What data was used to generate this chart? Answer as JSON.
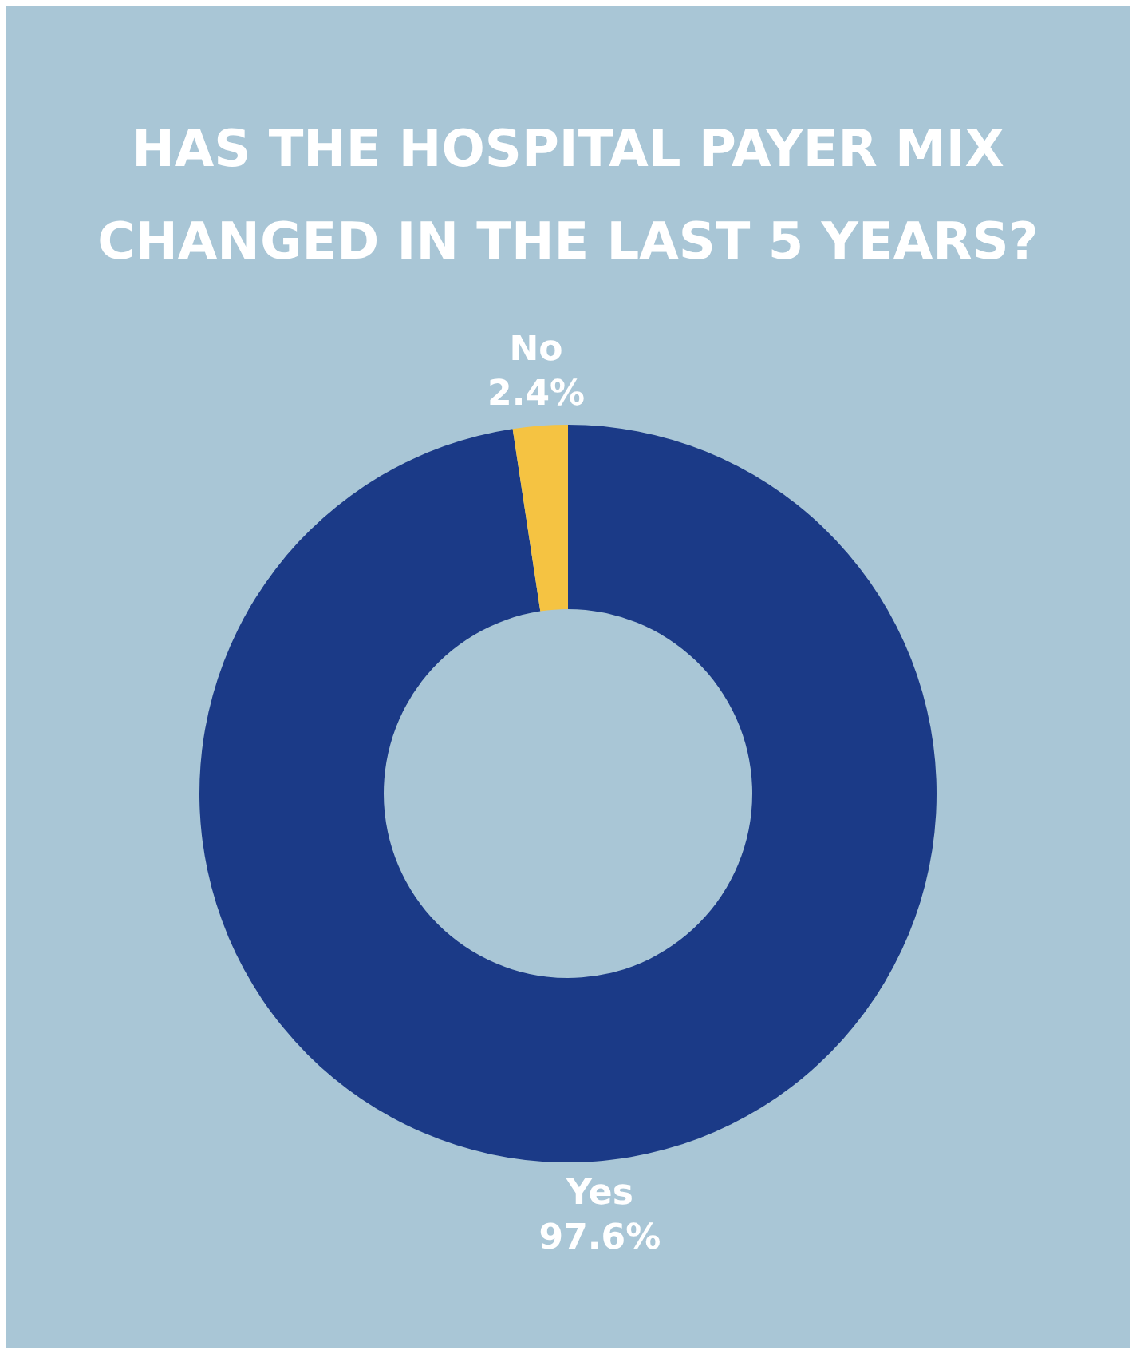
{
  "chart_data": {
    "type": "donut",
    "title": "HAS THE HOSPITAL PAYER MIX CHANGED IN THE LAST 5 YEARS?",
    "categories": [
      "Yes",
      "No"
    ],
    "values": [
      97.6,
      2.4
    ],
    "value_labels": [
      "97.6%",
      "2.4%"
    ],
    "colors": [
      "#1b3a87",
      "#f5c342"
    ],
    "legend": false
  }
}
